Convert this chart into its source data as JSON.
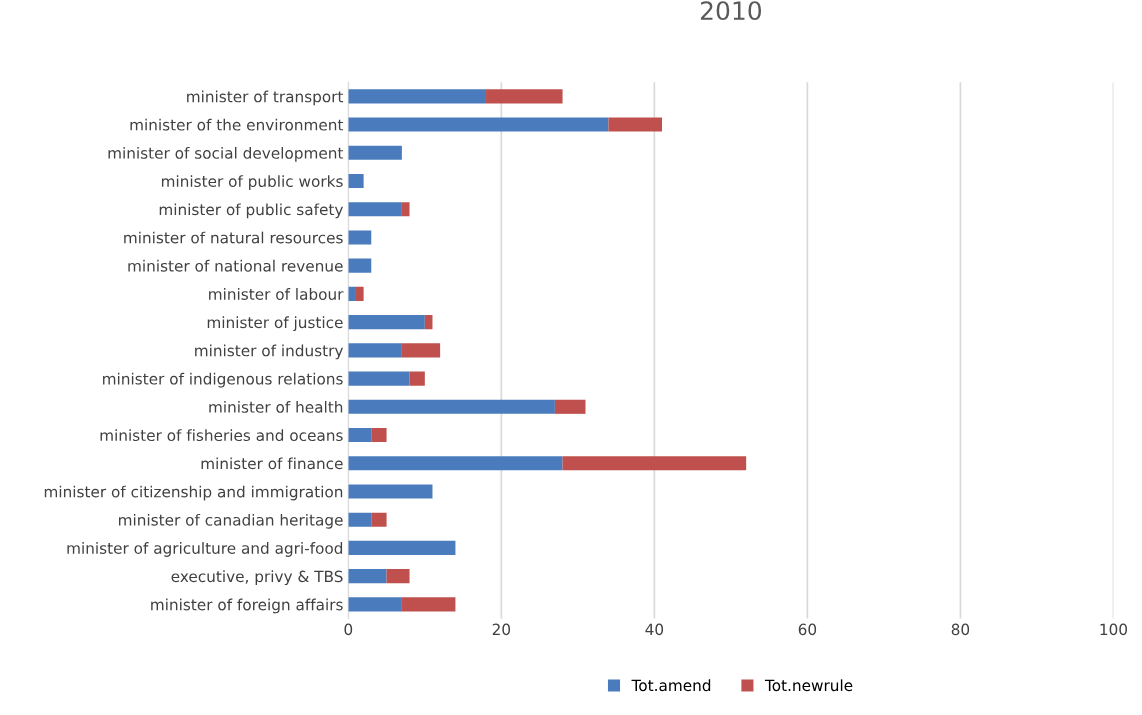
{
  "chart_data": {
    "type": "bar",
    "title": "2010",
    "orientation": "horizontal",
    "stacked": true,
    "categories": [
      "minister of transport",
      "minister of the environment",
      "minister of social development",
      "minister of public works",
      "minister of public safety",
      "minister of natural resources",
      "minister of national revenue",
      "minister of labour",
      "minister of justice",
      "minister of industry",
      "minister of indigenous relations",
      "minister of health",
      "minister of fisheries and oceans",
      "minister of finance",
      "minister of citizenship and immigration",
      "minister of canadian heritage",
      "minister of agriculture and agri-food",
      "executive, privy & TBS",
      "minister of foreign affairs"
    ],
    "series": [
      {
        "name": "Tot.amend",
        "color": "#4a7bbd",
        "values": [
          18,
          34,
          7,
          2,
          7,
          3,
          3,
          1,
          10,
          7,
          8,
          27,
          3,
          28,
          11,
          3,
          14,
          5,
          7
        ]
      },
      {
        "name": "Tot.newrule",
        "color": "#c0504d",
        "values": [
          10,
          7,
          null,
          null,
          1,
          null,
          null,
          1,
          1,
          5,
          2,
          4,
          2,
          24,
          null,
          2,
          null,
          3,
          7
        ]
      }
    ],
    "xlim": [
      0,
      100
    ],
    "xticks": [
      0,
      20,
      40,
      60,
      80,
      100
    ],
    "grid": "x",
    "legend": "bottom"
  }
}
